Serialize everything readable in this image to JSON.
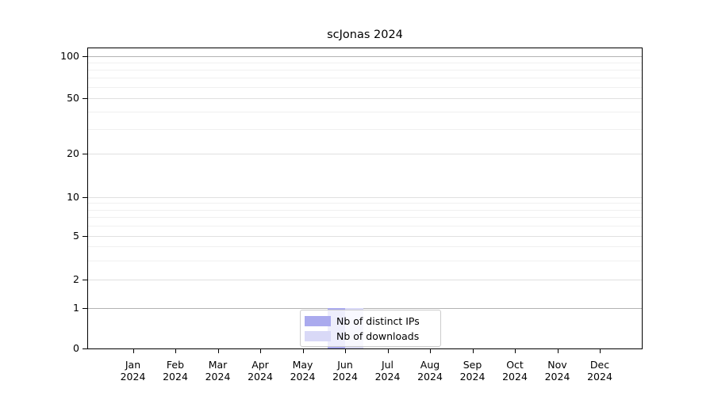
{
  "chart_data": {
    "type": "bar",
    "title": "scJonas 2024",
    "categories": [
      "Jan 2024",
      "Feb 2024",
      "Mar 2024",
      "Apr 2024",
      "May 2024",
      "Jun 2024",
      "Jul 2024",
      "Aug 2024",
      "Sep 2024",
      "Oct 2024",
      "Nov 2024",
      "Dec 2024"
    ],
    "series": [
      {
        "name": "Nb of distinct IPs",
        "color": "#aaaaee",
        "values": [
          0,
          0,
          0,
          0,
          0,
          1,
          0,
          0,
          0,
          0,
          0,
          0
        ]
      },
      {
        "name": "Nb of downloads",
        "color": "#d9d9f7",
        "values": [
          0,
          0,
          0,
          0,
          0,
          1,
          0,
          0,
          0,
          0,
          0,
          0
        ]
      }
    ],
    "xlabel": "",
    "ylabel": "",
    "yscale": "log with zero baseline",
    "yticks": [
      0,
      1,
      2,
      5,
      10,
      20,
      50,
      100
    ],
    "yminorticks": [
      3,
      4,
      6,
      7,
      8,
      9,
      30,
      40,
      60,
      70,
      80,
      90
    ],
    "ylim": [
      0,
      110
    ],
    "grid": "horizontal only",
    "legend_position": "lower center inside plot",
    "colors": {
      "bar_distinct_ips": "#aaaaee",
      "bar_downloads": "#d9d9f7",
      "grid_major": "#b3b3b3",
      "grid_mid": "#e0e0e0",
      "grid_minor": "#f0f0f0",
      "axis": "#000000",
      "text": "#000000",
      "legend_border": "#cccccc",
      "background": "#ffffff"
    }
  }
}
